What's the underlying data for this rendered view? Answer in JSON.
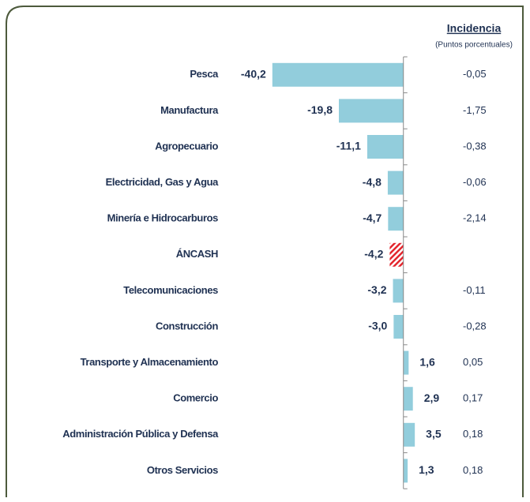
{
  "chart_data": {
    "type": "bar",
    "orientation": "horizontal",
    "categories": [
      "Pesca",
      "Manufactura",
      "Agropecuario",
      "Electricidad, Gas y Agua",
      "Minería e Hidrocarburos",
      "ÁNCASH",
      "Telecomunicaciones",
      "Construcción",
      "Transporte y Almacenamiento",
      "Comercio",
      "Administración Pública y Defensa",
      "Otros Servicios"
    ],
    "values": [
      -40.2,
      -19.8,
      -11.1,
      -4.8,
      -4.7,
      -4.2,
      -3.2,
      -3.0,
      1.6,
      2.9,
      3.5,
      1.3
    ],
    "value_labels": [
      "-40,2",
      "-19,8",
      "-11,1",
      "-4,8",
      "-4,7",
      "-4,2",
      "-3,2",
      "-3,0",
      "1,6",
      "2,9",
      "3,5",
      "1,3"
    ],
    "color": "#92cddc",
    "highlight": {
      "index": 5,
      "color": "#e3262e"
    },
    "xlim": [
      -45,
      10
    ],
    "incidence": {
      "title": "Incidencia",
      "subtitle": "(Puntos porcentuales)",
      "labels": [
        "-0,05",
        "-1,75",
        "-0,38",
        "-0,06",
        "-2,14",
        null,
        "-0,11",
        "-0,28",
        "0,05",
        "0,17",
        "0,18",
        "0,18"
      ]
    }
  }
}
